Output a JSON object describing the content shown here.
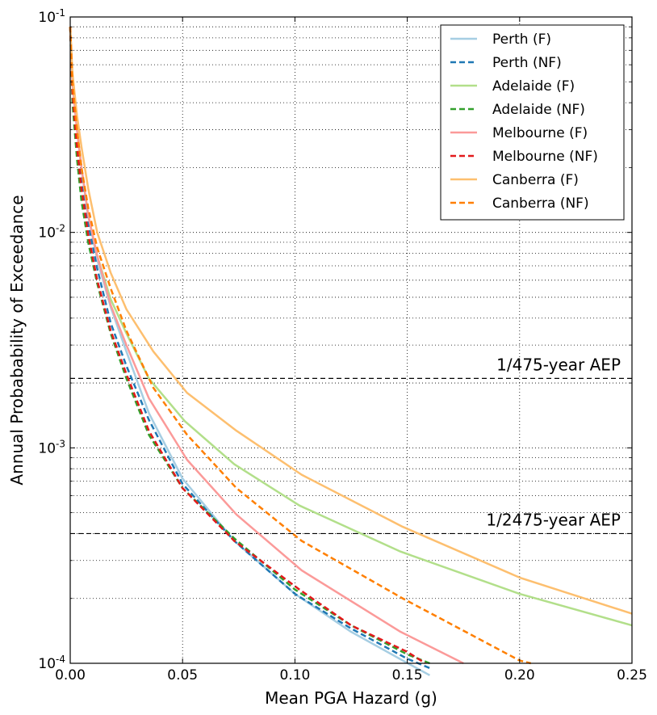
{
  "chart_data": {
    "type": "line",
    "xlabel": "Mean PGA Hazard (g)",
    "ylabel": "Annual Probabability of Exceedance",
    "xlim": [
      0.0,
      0.25
    ],
    "ylim": [
      0.0001,
      0.1
    ],
    "yscale": "log",
    "grid": true,
    "legend_position": "top-right",
    "x_ticks": [
      {
        "value": 0.0,
        "label": "0.00"
      },
      {
        "value": 0.05,
        "label": "0.05"
      },
      {
        "value": 0.1,
        "label": "0.10"
      },
      {
        "value": 0.15,
        "label": "0.15"
      },
      {
        "value": 0.2,
        "label": "0.20"
      },
      {
        "value": 0.25,
        "label": "0.25"
      }
    ],
    "y_ticks": [
      {
        "value": 0.0001,
        "base": "10",
        "exp": "-4"
      },
      {
        "value": 0.001,
        "base": "10",
        "exp": "-3"
      },
      {
        "value": 0.01,
        "base": "10",
        "exp": "-2"
      },
      {
        "value": 0.1,
        "base": "10",
        "exp": "-1"
      }
    ],
    "reference_lines": [
      {
        "label": "1/475-year AEP",
        "y": 0.0021
      },
      {
        "label": "1/2475-year AEP",
        "y": 0.0004
      }
    ],
    "series": [
      {
        "name": "Perth (F)",
        "color": "#a6cee3",
        "dashed": false,
        "x": [
          0.0,
          0.001,
          0.003,
          0.005,
          0.008,
          0.012,
          0.018,
          0.025,
          0.035,
          0.05,
          0.073,
          0.1,
          0.125,
          0.148,
          0.16
        ],
        "y": [
          0.09,
          0.05,
          0.03,
          0.02,
          0.012,
          0.0075,
          0.0045,
          0.0028,
          0.00145,
          0.00072,
          0.00037,
          0.00021,
          0.00014,
          0.000103,
          8.8e-05
        ]
      },
      {
        "name": "Perth (NF)",
        "color": "#1f78b4",
        "dashed": true,
        "x": [
          0.0,
          0.001,
          0.003,
          0.005,
          0.008,
          0.012,
          0.018,
          0.025,
          0.035,
          0.05,
          0.073,
          0.1,
          0.125,
          0.15,
          0.16
        ],
        "y": [
          0.09,
          0.05,
          0.028,
          0.018,
          0.011,
          0.0068,
          0.0038,
          0.0024,
          0.00135,
          0.00068,
          0.00037,
          0.00021,
          0.000145,
          0.000105,
          9.5e-05
        ]
      },
      {
        "name": "Adelaide (F)",
        "color": "#b2df8a",
        "dashed": false,
        "x": [
          0.0,
          0.001,
          0.003,
          0.005,
          0.008,
          0.012,
          0.018,
          0.025,
          0.035,
          0.051,
          0.073,
          0.102,
          0.147,
          0.2,
          0.25
        ],
        "y": [
          0.09,
          0.05,
          0.03,
          0.02,
          0.012,
          0.0078,
          0.0049,
          0.0034,
          0.0021,
          0.00133,
          0.00084,
          0.00054,
          0.00033,
          0.00021,
          0.00015
        ]
      },
      {
        "name": "Adelaide (NF)",
        "color": "#33a02c",
        "dashed": true,
        "x": [
          0.0,
          0.001,
          0.003,
          0.005,
          0.008,
          0.012,
          0.018,
          0.025,
          0.035,
          0.05,
          0.073,
          0.1,
          0.125,
          0.15,
          0.16
        ],
        "y": [
          0.09,
          0.04,
          0.022,
          0.014,
          0.009,
          0.0058,
          0.0034,
          0.0021,
          0.00115,
          0.00065,
          0.00038,
          0.00022,
          0.00015,
          0.00011,
          0.0001
        ]
      },
      {
        "name": "Melbourne (F)",
        "color": "#fb9a99",
        "dashed": false,
        "x": [
          0.0,
          0.001,
          0.003,
          0.005,
          0.008,
          0.012,
          0.018,
          0.025,
          0.035,
          0.052,
          0.074,
          0.103,
          0.147,
          0.175
        ],
        "y": [
          0.09,
          0.05,
          0.03,
          0.02,
          0.012,
          0.0078,
          0.0046,
          0.003,
          0.0017,
          0.00088,
          0.00049,
          0.00027,
          0.00014,
          0.0001
        ]
      },
      {
        "name": "Melbourne (NF)",
        "color": "#e31a1c",
        "dashed": true,
        "x": [
          0.0,
          0.001,
          0.003,
          0.005,
          0.008,
          0.012,
          0.018,
          0.025,
          0.035,
          0.05,
          0.073,
          0.102,
          0.125,
          0.15,
          0.158
        ],
        "y": [
          0.09,
          0.045,
          0.025,
          0.016,
          0.0098,
          0.006,
          0.0035,
          0.0022,
          0.0012,
          0.00065,
          0.00037,
          0.00022,
          0.00015,
          0.000113,
          0.0001
        ]
      },
      {
        "name": "Canberra (F)",
        "color": "#fdbf6f",
        "dashed": false,
        "x": [
          0.0,
          0.001,
          0.003,
          0.005,
          0.008,
          0.012,
          0.018,
          0.025,
          0.037,
          0.052,
          0.074,
          0.103,
          0.148,
          0.2,
          0.25
        ],
        "y": [
          0.09,
          0.055,
          0.035,
          0.025,
          0.016,
          0.01,
          0.0065,
          0.0044,
          0.0028,
          0.0018,
          0.0012,
          0.00075,
          0.00043,
          0.00025,
          0.00017
        ]
      },
      {
        "name": "Canberra (NF)",
        "color": "#ff7f00",
        "dashed": true,
        "x": [
          0.0,
          0.001,
          0.003,
          0.005,
          0.008,
          0.012,
          0.018,
          0.025,
          0.037,
          0.052,
          0.074,
          0.103,
          0.148,
          0.2,
          0.205
        ],
        "y": [
          0.09,
          0.05,
          0.03,
          0.02,
          0.013,
          0.0085,
          0.0055,
          0.0035,
          0.0019,
          0.00115,
          0.00065,
          0.00037,
          0.0002,
          0.000103,
          0.0001
        ]
      }
    ]
  }
}
